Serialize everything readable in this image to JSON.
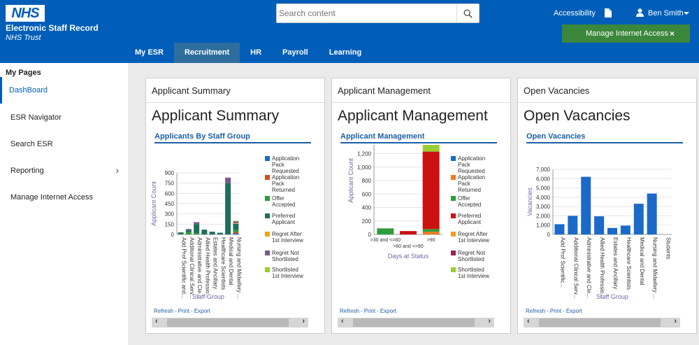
{
  "header": {
    "logo_text": "NHS",
    "brand_line1": "Electronic Staff Record",
    "brand_line2": "NHS Trust",
    "search_placeholder": "Search content",
    "accessibility_label": "Accessibility",
    "user_name": "Ben Smith",
    "banner_label": "Manage Internet Access",
    "banner_close": "×"
  },
  "nav": {
    "tabs": [
      {
        "label": "My ESR"
      },
      {
        "label": "Recruitment",
        "active": true
      },
      {
        "label": "HR"
      },
      {
        "label": "Payroll"
      },
      {
        "label": "Learning"
      }
    ]
  },
  "sidebar": {
    "title": "My Pages",
    "items": [
      {
        "label": "DashBoard",
        "active": true
      },
      {
        "label": "ESR Navigator"
      },
      {
        "label": "Search ESR"
      },
      {
        "label": "Reporting",
        "chevron": "›"
      },
      {
        "label": "Manage Internet Access"
      }
    ]
  },
  "panels": [
    {
      "title": "Applicant Summary",
      "heading": "Applicant Summary",
      "subtitle": "Applicants By Staff Group"
    },
    {
      "title": "Applicant Management",
      "heading": "Applicant Management",
      "subtitle": "Applicant Management"
    },
    {
      "title": "Open Vacancies",
      "heading": "Open Vacancies",
      "subtitle": "Open Vacancies"
    }
  ],
  "links": {
    "refresh": "Refresh",
    "sep": "-",
    "print": "Print",
    "export": "Export"
  },
  "scroll": {
    "left": "‹",
    "right": "›"
  },
  "chart_data": [
    {
      "type": "bar",
      "stacked": true,
      "xlabel": "Staff Group",
      "ylabel": "Applicant Count",
      "ylim": [
        0,
        900
      ],
      "yticks": [
        "0",
        "150",
        "300",
        "450",
        "600",
        "750",
        "900"
      ],
      "categories": [
        "Add Prof Scientific and...",
        "Additional Clinical Serv...",
        "Administrative and Cle...",
        "Allied Health Professio...",
        "Estates and Ancillary",
        "Healthcare Scientists",
        "Medical and Dental",
        "Nursing and Midwifery ..."
      ],
      "series": [
        {
          "name": "Application Pack Requested",
          "color": "#1b6ac9",
          "values": [
            0,
            0,
            0,
            0,
            0,
            0,
            0,
            15
          ]
        },
        {
          "name": "Application Pack Returned",
          "color": "#d44d1c",
          "values": [
            0,
            0,
            0,
            0,
            0,
            0,
            0,
            20
          ]
        },
        {
          "name": "Offer Accepted",
          "color": "#2e9c3a",
          "values": [
            10,
            35,
            20,
            0,
            0,
            0,
            0,
            30
          ]
        },
        {
          "name": "Preferred Applicant",
          "color": "#1e6e5c",
          "values": [
            20,
            30,
            130,
            70,
            40,
            25,
            750,
            90
          ]
        },
        {
          "name": "Regret After 1st Interview",
          "color": "#f0a020",
          "values": [
            0,
            0,
            0,
            0,
            0,
            0,
            0,
            10
          ]
        },
        {
          "name": "Regret Not Shortlisted",
          "color": "#7a5a8a",
          "values": [
            0,
            15,
            30,
            0,
            0,
            0,
            80,
            25
          ]
        },
        {
          "name": "Shortlisted 1st Interview",
          "color": "#9acd32",
          "values": [
            0,
            0,
            0,
            0,
            0,
            0,
            0,
            10
          ]
        }
      ]
    },
    {
      "type": "bar",
      "stacked": true,
      "xlabel": "Days at Status",
      "ylabel": "Applicant Count",
      "ylim": [
        0,
        1600
      ],
      "yticks": [
        "0",
        "200",
        "400",
        "600",
        "800",
        "1,000",
        "1,200",
        "1,400",
        "1,600"
      ],
      "categories": [
        ">30 and <=60",
        ">60 and <=90",
        ">90"
      ],
      "series": [
        {
          "name": "Application Pack Requested",
          "color": "#1b6ac9",
          "values": [
            0,
            0,
            0
          ]
        },
        {
          "name": "Application Pack Returned",
          "color": "#f07820",
          "values": [
            0,
            0,
            40
          ]
        },
        {
          "name": "Offer Accepted",
          "color": "#2e9c3a",
          "values": [
            90,
            0,
            40
          ]
        },
        {
          "name": "Preferred Applicant",
          "color": "#cc1111",
          "values": [
            0,
            50,
            1150
          ]
        },
        {
          "name": "Regret After 1st Interview",
          "color": "#f0a020",
          "values": [
            0,
            0,
            0
          ]
        },
        {
          "name": "Regret Not Shortlisted",
          "color": "#a02050",
          "values": [
            0,
            0,
            0
          ]
        },
        {
          "name": "Shortlisted 1st Interview",
          "color": "#9acd32",
          "values": [
            0,
            0,
            100
          ]
        }
      ]
    },
    {
      "type": "bar",
      "xlabel": "Staff Group",
      "ylabel": "Vacancies",
      "ylim": [
        0,
        7000
      ],
      "yticks": [
        "0",
        "1,000",
        "2,000",
        "3,000",
        "4,000",
        "5,000",
        "6,000",
        "7,000"
      ],
      "categories": [
        "Add Prof Scientific...",
        "Additional Clinical Serv...",
        "Administrative and Cle...",
        "Allied Health Professio...",
        "Estates and Ancillary",
        "Healthcare Scientists",
        "Medical and Dental",
        "Nursing and Midwifery ...",
        "Students"
      ],
      "values": [
        1100,
        2000,
        6200,
        1950,
        700,
        950,
        3300,
        4400,
        0
      ],
      "color": "#1b6ac9"
    }
  ]
}
